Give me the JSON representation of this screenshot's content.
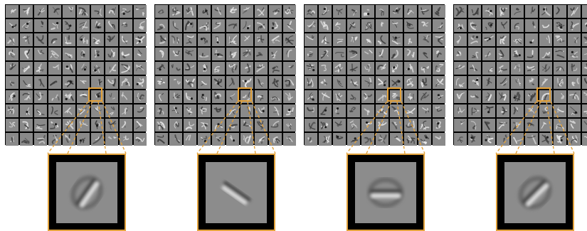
{
  "figure": {
    "panel_count": 4,
    "grid_rows": 10,
    "grid_cols": 10,
    "highlight": {
      "row": 6,
      "col": 6
    },
    "colors": {
      "accent": "#e2a23c",
      "frame": "#000000",
      "tile_gray": "#8a8a8a",
      "background": "#ffffff"
    }
  },
  "panels": [
    {
      "zoom_feature_angle": -55,
      "zoom_feature_shape": "diagonal-stroke-in-ring"
    },
    {
      "zoom_feature_angle": 35,
      "zoom_feature_shape": "diagonal-stroke"
    },
    {
      "zoom_feature_angle": 0,
      "zoom_feature_shape": "horizontal-stroke-in-ring"
    },
    {
      "zoom_feature_angle": -45,
      "zoom_feature_shape": "diagonal-stroke-in-ring"
    }
  ]
}
